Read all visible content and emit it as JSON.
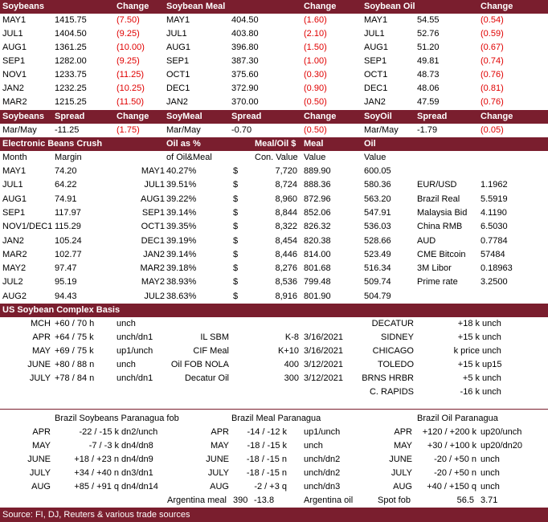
{
  "grains": {
    "header": [
      "Soybeans",
      null,
      "Change",
      "Soybean Meal",
      null,
      "Change",
      "Soybean Oil",
      null,
      "Change"
    ],
    "rows": [
      [
        "MAY1",
        "1415.75",
        "(7.50)",
        "MAY1",
        "404.50",
        "(1.60)",
        "MAY1",
        "54.55",
        "(0.54)"
      ],
      [
        "JUL1",
        "1404.50",
        "(9.25)",
        "JUL1",
        "403.80",
        "(2.10)",
        "JUL1",
        "52.76",
        "(0.59)"
      ],
      [
        "AUG1",
        "1361.25",
        "(10.00)",
        "AUG1",
        "396.80",
        "(1.50)",
        "AUG1",
        "51.20",
        "(0.67)"
      ],
      [
        "SEP1",
        "1282.00",
        "(9.25)",
        "SEP1",
        "387.30",
        "(1.00)",
        "SEP1",
        "49.81",
        "(0.74)"
      ],
      [
        "NOV1",
        "1233.75",
        "(11.25)",
        "OCT1",
        "375.60",
        "(0.30)",
        "OCT1",
        "48.73",
        "(0.76)"
      ],
      [
        "JAN2",
        "1232.25",
        "(10.25)",
        "DEC1",
        "372.90",
        "(0.90)",
        "DEC1",
        "48.06",
        "(0.81)"
      ],
      [
        "MAR2",
        "1215.25",
        "(11.50)",
        "JAN2",
        "370.00",
        "(0.50)",
        "JAN2",
        "47.59",
        "(0.76)"
      ]
    ]
  },
  "spreads": {
    "header": [
      "Soybeans",
      "Spread",
      "Change",
      "SoyMeal",
      "Spread",
      "Change",
      "SoyOil",
      "Spread",
      "Change"
    ],
    "row": [
      "Mar/May",
      "-11.25",
      "(1.75)",
      "Mar/May",
      "-0.70",
      "(0.50)",
      "Mar/May",
      "-1.79",
      "(0.05)"
    ]
  },
  "crush": {
    "title": "Electronic Beans Crush",
    "header": [
      "Oil as %",
      "Meal/Oil $",
      "Meal",
      "Oil"
    ],
    "subheader": [
      "Month",
      "Margin",
      "of Oil&Meal",
      "Con. Value",
      "Value",
      "Value"
    ],
    "rows": [
      [
        "MAY1",
        "74.20",
        "MAY1",
        "40.27%",
        "$",
        "7,720",
        "889.90",
        "600.05",
        null,
        null
      ],
      [
        "JUL1",
        "64.22",
        "JUL1",
        "39.51%",
        "$",
        "8,724",
        "888.36",
        "580.36",
        "EUR/USD",
        "1.1962"
      ],
      [
        "AUG1",
        "74.91",
        "AUG1",
        "39.22%",
        "$",
        "8,960",
        "872.96",
        "563.20",
        "Brazil Real",
        "5.5919"
      ],
      [
        "SEP1",
        "117.97",
        "SEP1",
        "39.14%",
        "$",
        "8,844",
        "852.06",
        "547.91",
        "Malaysia Bid",
        "4.1190"
      ],
      [
        "NOV1/DEC1",
        "115.29",
        "OCT1",
        "39.35%",
        "$",
        "8,322",
        "826.32",
        "536.03",
        "China RMB",
        "6.5030"
      ],
      [
        "JAN2",
        "105.24",
        "DEC1",
        "39.19%",
        "$",
        "8,454",
        "820.38",
        "528.66",
        "AUD",
        "0.7784"
      ],
      [
        "MAR2",
        "102.77",
        "JAN2",
        "39.14%",
        "$",
        "8,446",
        "814.00",
        "523.49",
        "CME Bitcoin",
        "57484"
      ],
      [
        "MAY2",
        "97.47",
        "MAR2",
        "39.18%",
        "$",
        "8,276",
        "801.68",
        "516.34",
        "3M Libor",
        "0.18963"
      ],
      [
        "JUL2",
        "95.19",
        "MAY2",
        "38.93%",
        "$",
        "8,536",
        "799.48",
        "509.74",
        "Prime rate",
        "3.2500"
      ],
      [
        "AUG2",
        "94.43",
        "JUL2",
        "38.63%",
        "$",
        "8,916",
        "801.90",
        "504.79",
        null,
        null
      ]
    ]
  },
  "basis": {
    "title": "US Soybean Complex Basis",
    "rows": [
      [
        "MCH",
        "+60 / 70 h",
        "unch",
        null,
        null,
        null,
        "DECATUR",
        "+18 k",
        "unch"
      ],
      [
        "APR",
        "+64 / 75 k",
        "unch/dn1",
        "IL SBM",
        "K-8",
        "3/16/2021",
        "SIDNEY",
        "+15 k",
        "unch"
      ],
      [
        "MAY",
        "+69 / 75 k",
        "up1/unch",
        "CIF Meal",
        "K+10",
        "3/16/2021",
        "CHICAGO",
        "k price",
        "unch"
      ],
      [
        "JUNE",
        "+80 / 88 n",
        "unch",
        "Oil FOB NOLA",
        "400",
        "3/12/2021",
        "TOLEDO",
        "+15 k",
        "up15"
      ],
      [
        "JULY",
        "+78 / 84 n",
        "unch/dn1",
        "Decatur Oil",
        "300",
        "3/12/2021",
        "BRNS HRBR",
        "+5 k",
        "unch"
      ],
      [
        null,
        null,
        null,
        null,
        null,
        null,
        "C. RAPIDS",
        "-16 k",
        "unch"
      ]
    ]
  },
  "brazil": {
    "headers": [
      "Brazil Soybeans Paranagua fob",
      "Brazil Meal Paranagua",
      "Brazil Oil Paranagua"
    ],
    "rows": [
      [
        "APR",
        "-22 / -15 k",
        "dn2/unch",
        "APR",
        "-14 / -12 k",
        "up1/unch",
        "APR",
        "+120 / +200 k",
        "up20/unch"
      ],
      [
        "MAY",
        "-7 / -3 k",
        "dn4/dn8",
        "MAY",
        "-18 / -15 k",
        "unch",
        "MAY",
        "+30 / +100 k",
        "up20/dn20"
      ],
      [
        "JUNE",
        "+18 / +23 n",
        "dn4/dn9",
        "JUNE",
        "-18 / -15 n",
        "unch/dn2",
        "JUNE",
        "-20 / +50 n",
        "unch"
      ],
      [
        "JULY",
        "+34 / +40 n",
        "dn3/dn1",
        "JULY",
        "-18 / -15 n",
        "unch/dn2",
        "JULY",
        "-20 / +50 n",
        "unch"
      ],
      [
        "AUG",
        "+85 / +91 q",
        "dn4/dn14",
        "AUG",
        "-2 / +3 q",
        "unch/dn3",
        "AUG",
        "+40 / +150 q",
        "unch"
      ]
    ],
    "argentina": [
      "Argentina meal",
      "390",
      "-13.8",
      "Argentina oil",
      "Spot fob",
      "56.5",
      "3.71"
    ]
  },
  "footer": "Source: FI, DJ, Reuters & various trade sources"
}
